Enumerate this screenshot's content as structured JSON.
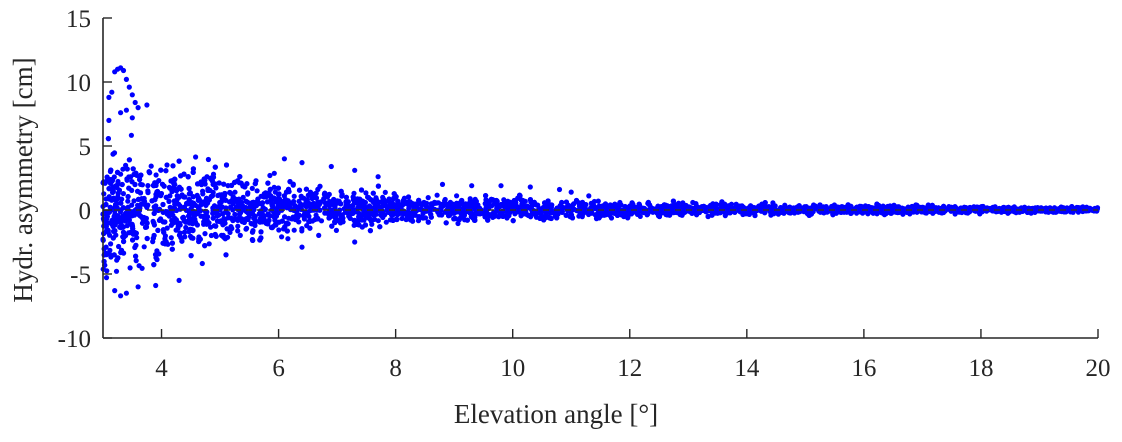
{
  "chart_data": {
    "type": "scatter",
    "title": "",
    "xlabel": "Elevation angle [°]",
    "ylabel": "Hydr. asymmetry [cm]",
    "xlim": [
      3,
      20
    ],
    "ylim": [
      -10,
      15
    ],
    "xticks": [
      4,
      6,
      8,
      10,
      12,
      14,
      16,
      18,
      20
    ],
    "yticks": [
      -10,
      -5,
      0,
      5,
      10,
      15
    ],
    "grid": false,
    "legend": "none",
    "marker_color": "#0000ff",
    "reference_line": {
      "y": 0,
      "style": "dashed",
      "color": "#333333"
    },
    "series": [
      {
        "envelope_x": [
          3.0,
          3.3,
          3.6,
          4.0,
          4.5,
          5.0,
          5.5,
          6.0,
          6.5,
          7.0,
          7.5,
          8.0,
          8.5,
          9.0,
          9.5,
          10.0,
          10.5,
          11.0,
          11.5,
          12.0,
          13.0,
          14.0,
          15.0,
          16.0,
          17.0,
          18.0,
          19.0,
          20.0
        ],
        "envelope_upper": [
          6.5,
          6.0,
          5.8,
          5.3,
          4.8,
          4.2,
          3.6,
          3.0,
          2.6,
          2.3,
          2.0,
          1.8,
          1.6,
          1.4,
          1.3,
          1.2,
          1.1,
          1.0,
          0.9,
          0.8,
          0.7,
          0.6,
          0.55,
          0.5,
          0.45,
          0.4,
          0.35,
          0.3
        ],
        "envelope_lower": [
          -6.5,
          -6.0,
          -5.7,
          -5.2,
          -4.6,
          -4.0,
          -3.4,
          -2.8,
          -2.4,
          -2.1,
          -1.8,
          -1.6,
          -1.4,
          -1.3,
          -1.2,
          -1.1,
          -1.0,
          -0.9,
          -0.8,
          -0.7,
          -0.6,
          -0.55,
          -0.5,
          -0.45,
          -0.4,
          -0.35,
          -0.3,
          -0.25
        ],
        "outliers": [
          [
            3.1,
            8.8
          ],
          [
            3.15,
            9.2
          ],
          [
            3.2,
            10.8
          ],
          [
            3.25,
            11.0
          ],
          [
            3.3,
            11.1
          ],
          [
            3.35,
            10.9
          ],
          [
            3.4,
            10.2
          ],
          [
            3.45,
            9.6
          ],
          [
            3.5,
            9.0
          ],
          [
            3.55,
            8.4
          ],
          [
            3.6,
            8.0
          ],
          [
            3.75,
            8.2
          ],
          [
            3.3,
            7.6
          ],
          [
            3.4,
            7.8
          ],
          [
            3.1,
            7.0
          ],
          [
            3.5,
            7.2
          ],
          [
            3.2,
            -6.3
          ],
          [
            3.3,
            -6.7
          ],
          [
            3.4,
            -6.5
          ],
          [
            3.6,
            -6.0
          ],
          [
            3.9,
            -5.9
          ],
          [
            4.3,
            -5.5
          ],
          [
            6.1,
            4.0
          ],
          [
            6.4,
            3.7
          ],
          [
            6.9,
            3.4
          ],
          [
            7.3,
            3.1
          ],
          [
            7.7,
            2.6
          ],
          [
            8.8,
            2.0
          ],
          [
            9.3,
            1.9
          ],
          [
            9.8,
            1.9
          ],
          [
            10.3,
            1.8
          ],
          [
            10.8,
            1.6
          ],
          [
            11.0,
            1.4
          ],
          [
            11.3,
            1.1
          ],
          [
            6.4,
            -2.9
          ],
          [
            7.3,
            -2.5
          ]
        ]
      }
    ]
  }
}
